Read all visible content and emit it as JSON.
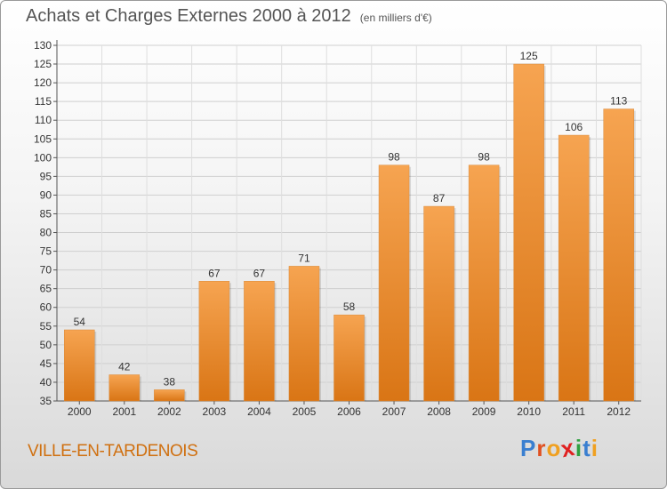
{
  "page": {
    "title": "Achats et Charges Externes 2000 à 2012",
    "unit_note": "(en milliers d'€)",
    "town": "VILLE-EN-TARDENOIS",
    "logo_letters": [
      "P",
      "r",
      "o",
      "x",
      "i",
      "t",
      "i"
    ],
    "logo_colors": [
      "#3a7fd0",
      "#e05020",
      "#f0a020",
      "#e02020",
      "#30a040",
      "#3a7fd0",
      "#f0a020"
    ]
  },
  "chart_data": {
    "type": "bar",
    "categories": [
      "2000",
      "2001",
      "2002",
      "2003",
      "2004",
      "2005",
      "2006",
      "2007",
      "2008",
      "2009",
      "2010",
      "2011",
      "2012"
    ],
    "values": [
      54,
      42,
      38,
      67,
      67,
      71,
      58,
      98,
      87,
      98,
      125,
      106,
      113
    ],
    "ylim": [
      35,
      130
    ],
    "yticks": [
      35,
      40,
      45,
      50,
      55,
      60,
      65,
      70,
      75,
      80,
      85,
      90,
      95,
      100,
      105,
      110,
      115,
      120,
      125,
      130
    ],
    "grid": true,
    "bar_color_top": "#f6a451",
    "bar_color_bottom": "#d97515"
  }
}
